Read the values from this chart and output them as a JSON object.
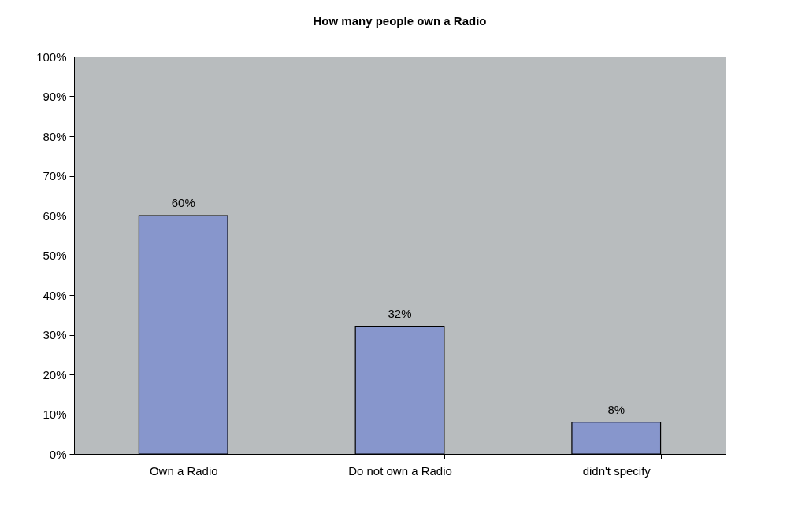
{
  "chart_data": {
    "type": "bar",
    "title": "How many people own a Radio",
    "categories": [
      "Own a Radio",
      "Do not own a Radio",
      "didn't specify"
    ],
    "values": [
      60,
      32,
      8
    ],
    "value_labels": [
      "60%",
      "32%",
      "8%"
    ],
    "color": "#8796cc",
    "ylim": [
      0,
      100
    ],
    "yticks": [
      {
        "value": 0,
        "label": "0%"
      },
      {
        "value": 10,
        "label": "10%"
      },
      {
        "value": 20,
        "label": "20%"
      },
      {
        "value": 30,
        "label": "30%"
      },
      {
        "value": 40,
        "label": "40%"
      },
      {
        "value": 50,
        "label": "50%"
      },
      {
        "value": 60,
        "label": "60%"
      },
      {
        "value": 70,
        "label": "70%"
      },
      {
        "value": 80,
        "label": "80%"
      },
      {
        "value": 90,
        "label": "90%"
      },
      {
        "value": 100,
        "label": "100%"
      }
    ],
    "grid": false
  }
}
